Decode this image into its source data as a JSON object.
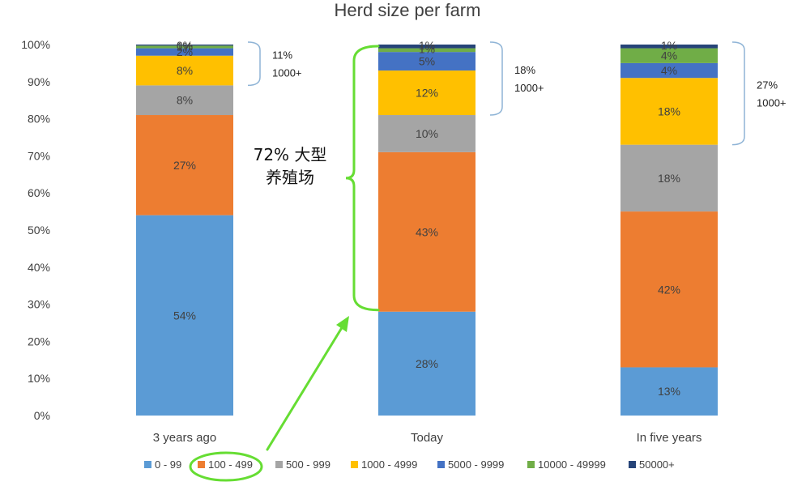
{
  "chart_data": {
    "type": "bar",
    "stacked": true,
    "title": "Herd size per farm",
    "categories": [
      "3 years ago",
      "Today",
      "In five years"
    ],
    "ylim": [
      0,
      100
    ],
    "yticks": [
      "0%",
      "10%",
      "20%",
      "30%",
      "40%",
      "50%",
      "60%",
      "70%",
      "80%",
      "90%",
      "100%"
    ],
    "grid": false,
    "legend_position": "bottom",
    "series": [
      {
        "name": "0 - 99",
        "color": "#5B9BD5",
        "values": [
          54,
          28,
          13
        ],
        "labels": [
          "54%",
          "28%",
          "13%"
        ]
      },
      {
        "name": "100 - 499",
        "color": "#ED7D31",
        "values": [
          27,
          43,
          42
        ],
        "labels": [
          "27%",
          "43%",
          "42%"
        ]
      },
      {
        "name": "500 - 999",
        "color": "#A5A5A5",
        "values": [
          8,
          10,
          18
        ],
        "labels": [
          "8%",
          "10%",
          "18%"
        ]
      },
      {
        "name": "1000 - 4999",
        "color": "#FFC000",
        "values": [
          8,
          12,
          18
        ],
        "labels": [
          "8%",
          "12%",
          "18%"
        ]
      },
      {
        "name": "5000 - 9999",
        "color": "#4472C4",
        "values": [
          2,
          5,
          4
        ],
        "labels": [
          "2%",
          "5%",
          "4%"
        ]
      },
      {
        "name": "10000 - 49999",
        "color": "#70AD47",
        "values": [
          0.7,
          1,
          4
        ],
        "labels": [
          "1%",
          "1%",
          "4%"
        ]
      },
      {
        "name": "50000+",
        "color": "#264478",
        "values": [
          0.3,
          1,
          1
        ],
        "labels": [
          "0%",
          "1%",
          "1%"
        ]
      }
    ],
    "annotations": [
      {
        "bar": 0,
        "line1": "11%",
        "line2": "1000+"
      },
      {
        "bar": 1,
        "line1": "18%",
        "line2": "1000+"
      },
      {
        "bar": 2,
        "line1": "27%",
        "line2": "1000+"
      }
    ],
    "callout": {
      "line1": "72% 大型",
      "line2": "养殖场",
      "color": "#66DD33"
    }
  }
}
